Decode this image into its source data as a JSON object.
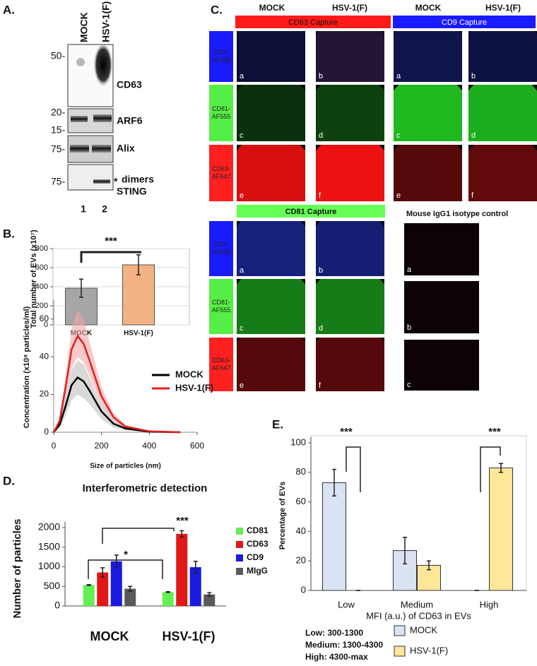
{
  "blot": {
    "label": "A.",
    "lanes": [
      "MOCK",
      "HSV-1(F)"
    ],
    "markers": [
      "50-",
      "20-",
      "15-",
      "75-",
      "75-"
    ],
    "proteins": [
      "CD63",
      "ARF6",
      "Alix",
      "dimers",
      "STING"
    ],
    "asterisk": "*",
    "lane_numbers": [
      "1",
      "2"
    ]
  },
  "microscopy": {
    "label": "C.",
    "columns": [
      "MOCK",
      "HSV-1(F)",
      "MOCK",
      "HSV-1(F)"
    ],
    "captures": [
      "CD63 Capture",
      "CD9 Capture",
      "CD81 Capture"
    ],
    "isotype": "Mouse IgG1 isotype control",
    "rows": [
      "CD9-AF488",
      "CD81-AF555",
      "CD63-AF647"
    ],
    "tile_letters": [
      "a",
      "b",
      "c",
      "d",
      "e",
      "f"
    ],
    "isotype_letters": [
      "a",
      "b",
      "c"
    ]
  },
  "chart_data": [
    {
      "type": "bar",
      "panel": "B.",
      "ylabel": "Total number of EVs (x10⁷)",
      "categories": [
        "MOCK",
        "HSV-1(F)"
      ],
      "values": [
        385,
        630
      ],
      "errors": [
        95,
        105
      ],
      "colors": [
        "#a6a6a6",
        "#f4b183"
      ],
      "ylim": [
        0,
        800
      ],
      "yticks": [
        0,
        200,
        400,
        600,
        800
      ],
      "grid": true,
      "annotations": [
        "***"
      ]
    },
    {
      "type": "line",
      "xlabel": "Size of particles (nm)",
      "ylabel": "Concentration (x10⁸ particles/ml)",
      "x": [
        0,
        25,
        50,
        75,
        100,
        125,
        150,
        200,
        250,
        300,
        400,
        530
      ],
      "series": [
        {
          "name": "MOCK",
          "color": "#000000",
          "band_color": "#bfbfbf",
          "values": [
            0,
            4,
            14,
            25,
            29,
            27,
            22,
            11,
            4.5,
            2,
            0.3,
            0
          ],
          "lower": [
            0,
            2,
            9,
            17,
            20,
            18,
            15,
            7,
            2.5,
            1,
            0,
            0
          ],
          "upper": [
            0,
            6,
            19,
            33,
            38,
            36,
            29,
            15,
            6.5,
            3,
            0.6,
            0
          ]
        },
        {
          "name": "HSV-1(F)",
          "color": "#e02020",
          "band_color": "#f4a6a6",
          "values": [
            0,
            6,
            24,
            44,
            51,
            47,
            38,
            19,
            8,
            3,
            0.5,
            0
          ],
          "lower": [
            0,
            4,
            18,
            34,
            40,
            37,
            30,
            15,
            6,
            2,
            0.3,
            0
          ],
          "upper": [
            0,
            8,
            30,
            55,
            65,
            60,
            48,
            24,
            10,
            4,
            0.7,
            0
          ]
        }
      ],
      "xlim": [
        0,
        600
      ],
      "xticks": [
        0,
        200,
        400,
        600
      ],
      "ylim": [
        0,
        70
      ],
      "yticks": [
        0,
        20,
        40,
        60
      ],
      "legend": "right"
    },
    {
      "type": "grouped_bar",
      "panel": "D.",
      "title": "Interferometric detection",
      "ylabel": "Number of particles",
      "categories": [
        "MOCK",
        "HSV-1(F)"
      ],
      "series": [
        {
          "name": "CD81",
          "color": "#66ee55",
          "values": [
            535,
            355
          ],
          "errors": [
            10,
            10
          ]
        },
        {
          "name": "CD63",
          "color": "#e01818",
          "values": [
            855,
            1840
          ],
          "errors": [
            120,
            80
          ]
        },
        {
          "name": "CD9",
          "color": "#1a1ae0",
          "values": [
            1140,
            990
          ],
          "errors": [
            160,
            150
          ]
        },
        {
          "name": "MIgG",
          "color": "#595959",
          "values": [
            440,
            295
          ],
          "errors": [
            60,
            45
          ]
        }
      ],
      "ylim": [
        0,
        2000
      ],
      "yticks": [
        0,
        500,
        1000,
        1500,
        2000
      ],
      "grid": false,
      "legend": "right",
      "annotations": [
        "***",
        "*"
      ]
    },
    {
      "type": "grouped_bar",
      "panel": "E.",
      "ylabel": "Percentage of EVs",
      "xlabel": "MFI (a.u.) of CD63 in EVs",
      "categories": [
        "Low",
        "Medium",
        "High"
      ],
      "series": [
        {
          "name": "MOCK",
          "color": "#dae3f3",
          "values": [
            73,
            27,
            0
          ],
          "errors": [
            9,
            9,
            0
          ]
        },
        {
          "name": "HSV-1(F)",
          "color": "#ffe699",
          "values": [
            0,
            17,
            83
          ],
          "errors": [
            0,
            3,
            3
          ]
        }
      ],
      "ylim": [
        0,
        100
      ],
      "yticks": [
        0,
        20,
        40,
        60,
        80,
        100
      ],
      "grid": false,
      "legend": "bottom-right",
      "annotations": [
        "***",
        "***"
      ],
      "notes": [
        "Low: 300-1300",
        "Medium: 1300-4300",
        "High: 4300-max"
      ]
    }
  ]
}
